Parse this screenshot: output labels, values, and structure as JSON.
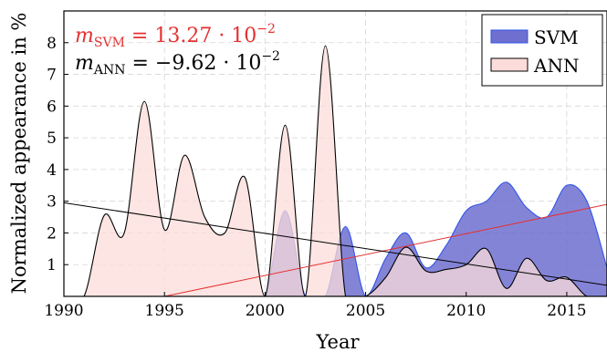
{
  "chart_data": {
    "type": "area",
    "xlabel": "Year",
    "ylabel": "Normalized appearance in %",
    "xlim": [
      1990,
      2017
    ],
    "ylim": [
      0,
      9
    ],
    "xticks": [
      1990,
      1995,
      2000,
      2005,
      2010,
      2015
    ],
    "yticks": [
      1,
      2,
      3,
      4,
      5,
      6,
      7,
      8
    ],
    "grid": true,
    "legend_position": "top-right",
    "series": [
      {
        "name": "SVM",
        "fill": "#6f6fd0",
        "stroke": "#2f55e8",
        "x": [
          1990,
          1991,
          1992,
          1993,
          1994,
          1995,
          1996,
          1997,
          1998,
          1999,
          2000,
          2001,
          2002,
          2003,
          2004,
          2005,
          2006,
          2007,
          2008,
          2009,
          2010,
          2011,
          2012,
          2013,
          2014,
          2015,
          2016,
          2017
        ],
        "values": [
          0,
          0,
          0,
          0,
          0,
          0,
          0,
          0,
          0,
          0,
          0,
          2.7,
          0,
          0,
          2.2,
          0,
          1.2,
          2.0,
          0.9,
          1.6,
          2.7,
          3.0,
          3.6,
          2.8,
          2.5,
          3.5,
          3.0,
          0.9
        ]
      },
      {
        "name": "ANN",
        "fill": "#fbdcda",
        "stroke": "#000000",
        "x": [
          1990,
          1991,
          1992,
          1993,
          1994,
          1995,
          1996,
          1997,
          1998,
          1999,
          2000,
          2001,
          2002,
          2003,
          2004,
          2005,
          2006,
          2007,
          2008,
          2009,
          2010,
          2011,
          2012,
          2013,
          2014,
          2015,
          2016,
          2017
        ],
        "values": [
          0,
          0,
          2.55,
          2.0,
          6.15,
          2.1,
          4.45,
          2.5,
          2.0,
          3.75,
          0,
          5.4,
          0,
          7.9,
          0,
          0,
          0.6,
          1.55,
          0.8,
          0.85,
          1.0,
          1.5,
          0.25,
          1.2,
          0.5,
          0.6,
          0,
          0
        ]
      }
    ],
    "trend_lines": [
      {
        "series": "SVM",
        "color": "#e53030",
        "x": [
          1995,
          2017
        ],
        "y": [
          0,
          2.9
        ]
      },
      {
        "series": "ANN",
        "color": "#000000",
        "x": [
          1990,
          2017
        ],
        "y": [
          2.95,
          0.35
        ]
      }
    ]
  },
  "annotations": {
    "svm": {
      "m": "m",
      "sub": "SVM",
      "rest": " = 13.27 · 10",
      "exp": "−2",
      "color": "#e53030"
    },
    "ann": {
      "m": "m",
      "sub": "ANN",
      "rest": " = −9.62 · 10",
      "exp": "−2",
      "color": "#000000"
    }
  }
}
